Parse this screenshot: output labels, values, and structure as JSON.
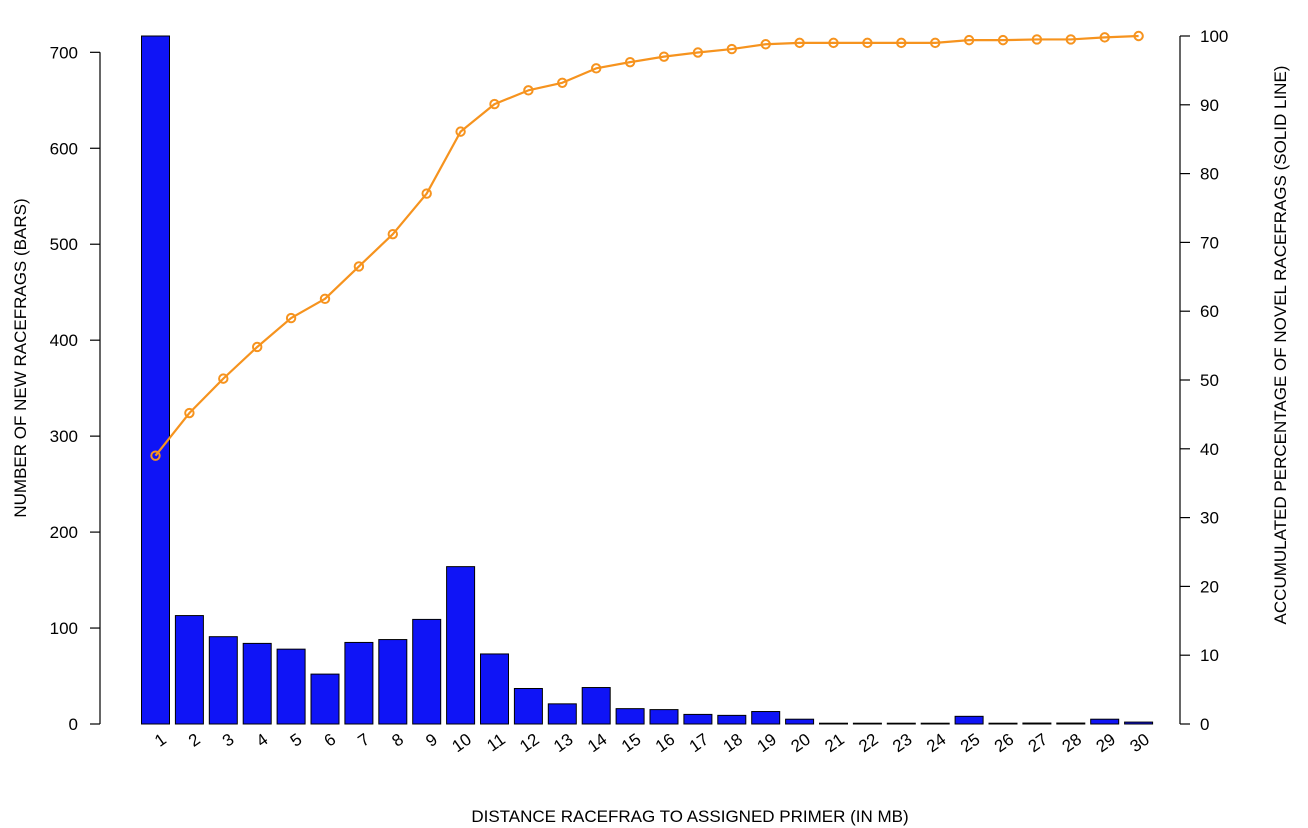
{
  "chart_data": {
    "type": "bar",
    "categories": [
      "1",
      "2",
      "3",
      "4",
      "5",
      "6",
      "7",
      "8",
      "9",
      "10",
      "11",
      "12",
      "13",
      "14",
      "15",
      "16",
      "17",
      "18",
      "19",
      "20",
      "21",
      "22",
      "23",
      "24",
      "25",
      "26",
      "27",
      "28",
      "29",
      "30"
    ],
    "series": [
      {
        "type": "bar",
        "axis": "left",
        "values": [
          717,
          113,
          91,
          84,
          78,
          52,
          85,
          88,
          109,
          164,
          73,
          37,
          21,
          38,
          16,
          15,
          10,
          9,
          13,
          5,
          0,
          0,
          0,
          0,
          8,
          0,
          1,
          1,
          5,
          2
        ]
      },
      {
        "type": "line",
        "axis": "right",
        "values": [
          39,
          45.2,
          50.2,
          54.8,
          59,
          61.8,
          66.5,
          71.2,
          77.1,
          86.1,
          90.1,
          92.1,
          93.2,
          95.3,
          96.2,
          97,
          97.6,
          98.1,
          98.8,
          99,
          99,
          99,
          99,
          99,
          99.4,
          99.4,
          99.5,
          99.5,
          99.8,
          100
        ]
      }
    ],
    "xlabel": "DISTANCE RACEFRAG TO ASSIGNED PRIMER (IN MB)",
    "ylabel": "NUMBER OF NEW RACEFRAGS (BARS)",
    "y2label": "ACCUMULATED PERCENTAGE OF NOVEL RACEFRAGS (SOLID LINE)",
    "ylim": [
      0,
      717
    ],
    "yticks": [
      "0",
      "100",
      "200",
      "300",
      "400",
      "500",
      "600",
      "700"
    ],
    "y2lim": [
      0,
      100
    ],
    "y2ticks": [
      "0",
      "10",
      "20",
      "30",
      "40",
      "50",
      "60",
      "70",
      "80",
      "90",
      "100"
    ],
    "grid": false,
    "colors": {
      "bar": "#0f14f6",
      "line": "#f6931e"
    }
  }
}
